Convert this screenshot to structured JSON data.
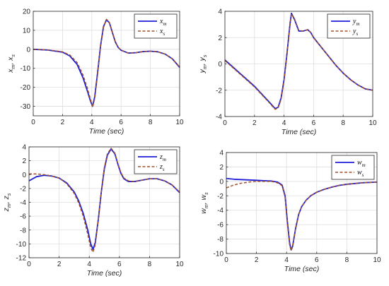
{
  "colors": {
    "master": "#1f1fd6",
    "slave": "#a0522d",
    "grid": "#dedede",
    "axis": "#262626"
  },
  "chart_data": [
    {
      "id": "x",
      "type": "line",
      "xlabel": "Time (sec)",
      "ylabel_parts": [
        {
          "main": "x",
          "sub": "m"
        },
        {
          "main": "x",
          "sub": "s"
        }
      ],
      "xlim": [
        0,
        10
      ],
      "ylim": [
        -35,
        20
      ],
      "xticks": [
        0,
        2,
        4,
        6,
        8,
        10
      ],
      "yticks": [
        -30,
        -20,
        -10,
        0,
        10,
        20
      ],
      "grid": true,
      "legend": "top-right",
      "series": [
        {
          "main": "x",
          "sub": "m",
          "style": "solid",
          "x": [
            0,
            1,
            2,
            2.5,
            3,
            3.4,
            3.7,
            3.9,
            4.05,
            4.2,
            4.4,
            4.6,
            4.8,
            5.0,
            5.2,
            5.4,
            5.6,
            5.8,
            6.0,
            6.5,
            7.0,
            7.5,
            8.0,
            8.5,
            9.0,
            9.5,
            10
          ],
          "y": [
            0,
            -0.4,
            -1.5,
            -3.5,
            -8,
            -15,
            -22,
            -27,
            -30,
            -25,
            -12,
            2,
            12,
            15.5,
            14,
            9,
            4,
            1,
            -0.5,
            -2,
            -1.8,
            -1.2,
            -1,
            -1.3,
            -2.5,
            -5,
            -9.5
          ]
        },
        {
          "main": "x",
          "sub": "s",
          "style": "dashed",
          "x": [
            0,
            1,
            2,
            2.5,
            3,
            3.4,
            3.7,
            3.9,
            4.05,
            4.2,
            4.4,
            4.6,
            4.8,
            5.0,
            5.2,
            5.4,
            5.6,
            5.8,
            6.0,
            6.5,
            7.0,
            7.5,
            8.0,
            8.5,
            9.0,
            9.5,
            10
          ],
          "y": [
            0,
            -0.3,
            -1.3,
            -3,
            -7,
            -13.5,
            -20.5,
            -26,
            -30.5,
            -26,
            -13,
            1.5,
            11.5,
            15.8,
            14.2,
            9.2,
            4.2,
            1.1,
            -0.4,
            -2,
            -1.8,
            -1.2,
            -1,
            -1.3,
            -2.5,
            -5,
            -9.3
          ]
        }
      ]
    },
    {
      "id": "y",
      "type": "line",
      "xlabel": "Time (sec)",
      "ylabel_parts": [
        {
          "main": "y",
          "sub": "m"
        },
        {
          "main": "y",
          "sub": "s"
        }
      ],
      "xlim": [
        0,
        10
      ],
      "ylim": [
        -4,
        4
      ],
      "xticks": [
        0,
        2,
        4,
        6,
        8,
        10
      ],
      "yticks": [
        -4,
        -2,
        0,
        2,
        4
      ],
      "grid": true,
      "legend": "top-right",
      "series": [
        {
          "main": "y",
          "sub": "m",
          "style": "solid",
          "x": [
            0,
            0.5,
            1,
            1.5,
            2,
            2.5,
            3,
            3.4,
            3.6,
            3.8,
            4.0,
            4.2,
            4.4,
            4.5,
            4.7,
            5.0,
            5.3,
            5.6,
            5.8,
            6.0,
            6.5,
            7.0,
            7.5,
            8.0,
            8.5,
            9.0,
            9.5,
            10
          ],
          "y": [
            0.3,
            -0.2,
            -0.7,
            -1.2,
            -1.7,
            -2.3,
            -2.9,
            -3.4,
            -3.3,
            -2.6,
            -1.2,
            0.8,
            3.0,
            3.85,
            3.4,
            2.5,
            2.5,
            2.6,
            2.4,
            2.0,
            1.3,
            0.6,
            -0.1,
            -0.7,
            -1.2,
            -1.6,
            -1.9,
            -2.0
          ]
        },
        {
          "main": "y",
          "sub": "s",
          "style": "dashed",
          "x": [
            0,
            0.5,
            1,
            1.5,
            2,
            2.5,
            3,
            3.4,
            3.6,
            3.8,
            4.0,
            4.2,
            4.4,
            4.5,
            4.7,
            5.0,
            5.3,
            5.6,
            5.8,
            6.0,
            6.5,
            7.0,
            7.5,
            8.0,
            8.5,
            9.0,
            9.5,
            10
          ],
          "y": [
            0.25,
            -0.25,
            -0.75,
            -1.25,
            -1.75,
            -2.35,
            -2.95,
            -3.45,
            -3.35,
            -2.7,
            -1.3,
            0.7,
            2.9,
            3.8,
            3.45,
            2.55,
            2.5,
            2.6,
            2.4,
            2.0,
            1.3,
            0.6,
            -0.1,
            -0.7,
            -1.2,
            -1.6,
            -1.9,
            -2.0
          ]
        }
      ]
    },
    {
      "id": "z",
      "type": "line",
      "xlabel": "Time (sec)",
      "ylabel_parts": [
        {
          "main": "z",
          "sub": "m"
        },
        {
          "main": "z",
          "sub": "s"
        }
      ],
      "xlim": [
        0,
        10
      ],
      "ylim": [
        -12,
        4
      ],
      "xticks": [
        0,
        2,
        4,
        6,
        8,
        10
      ],
      "yticks": [
        -12,
        -10,
        -8,
        -6,
        -4,
        -2,
        0,
        2,
        4
      ],
      "grid": true,
      "legend": "top-right",
      "series": [
        {
          "main": "z",
          "sub": "m",
          "style": "solid",
          "x": [
            0,
            0.5,
            1,
            1.5,
            2,
            2.5,
            3,
            3.3,
            3.6,
            3.9,
            4.1,
            4.25,
            4.4,
            4.6,
            4.8,
            5.0,
            5.2,
            5.45,
            5.7,
            5.9,
            6.1,
            6.3,
            6.6,
            7.0,
            7.5,
            8.0,
            8.5,
            9.0,
            9.5,
            10
          ],
          "y": [
            -0.9,
            -0.3,
            -0.1,
            -0.2,
            -0.5,
            -1.2,
            -2.5,
            -3.8,
            -5.6,
            -8,
            -10,
            -10.8,
            -9.8,
            -6.5,
            -2.5,
            0.8,
            2.8,
            3.7,
            3.0,
            1.5,
            0.2,
            -0.6,
            -1.0,
            -1.0,
            -0.8,
            -0.6,
            -0.6,
            -0.9,
            -1.5,
            -2.6
          ]
        },
        {
          "main": "z",
          "sub": "s",
          "style": "dashed",
          "x": [
            0,
            0.5,
            1,
            1.5,
            2,
            2.5,
            3,
            3.3,
            3.6,
            3.9,
            4.1,
            4.25,
            4.4,
            4.6,
            4.8,
            5.0,
            5.2,
            5.45,
            5.7,
            5.9,
            6.1,
            6.3,
            6.6,
            7.0,
            7.5,
            8.0,
            8.5,
            9.0,
            9.5,
            10
          ],
          "y": [
            0.1,
            0.1,
            0,
            -0.2,
            -0.5,
            -1.3,
            -2.7,
            -4.1,
            -6,
            -8.6,
            -10.6,
            -11.2,
            -10.1,
            -6.6,
            -2.4,
            1.0,
            3.0,
            3.8,
            3.1,
            1.6,
            0.3,
            -0.5,
            -0.9,
            -1.0,
            -0.8,
            -0.6,
            -0.6,
            -0.9,
            -1.5,
            -2.5
          ]
        }
      ]
    },
    {
      "id": "w",
      "type": "line",
      "xlabel": "Time (sec)",
      "ylabel_parts": [
        {
          "main": "w",
          "sub": "m"
        },
        {
          "main": "w",
          "sub": "s"
        }
      ],
      "xlim": [
        0,
        10
      ],
      "ylim": [
        -10,
        4
      ],
      "xticks": [
        0,
        2,
        4,
        6,
        8,
        10
      ],
      "yticks": [
        -10,
        -8,
        -6,
        -4,
        -2,
        0,
        2,
        4
      ],
      "grid": true,
      "legend": "top-right",
      "series": [
        {
          "main": "w",
          "sub": "m",
          "style": "solid",
          "x": [
            0,
            0.5,
            1,
            1.5,
            2,
            2.5,
            3,
            3.4,
            3.7,
            3.9,
            4.05,
            4.2,
            4.3,
            4.4,
            4.6,
            4.8,
            5.0,
            5.3,
            5.6,
            6.0,
            6.5,
            7.0,
            7.5,
            8.0,
            8.5,
            9.0,
            9.5,
            10
          ],
          "y": [
            0.4,
            0.3,
            0.25,
            0.2,
            0.15,
            0.1,
            0.05,
            -0.1,
            -0.5,
            -2,
            -5.5,
            -8.5,
            -9.5,
            -9.0,
            -6.5,
            -4.6,
            -3.5,
            -2.6,
            -2.0,
            -1.5,
            -1.1,
            -0.8,
            -0.55,
            -0.4,
            -0.3,
            -0.2,
            -0.15,
            -0.1
          ]
        },
        {
          "main": "w",
          "sub": "s",
          "style": "dashed",
          "x": [
            0,
            0.5,
            1,
            1.5,
            2,
            2.5,
            3,
            3.4,
            3.7,
            3.9,
            4.05,
            4.2,
            4.3,
            4.4,
            4.6,
            4.8,
            5.0,
            5.3,
            5.6,
            6.0,
            6.5,
            7.0,
            7.5,
            8.0,
            8.5,
            9.0,
            9.5,
            10
          ],
          "y": [
            -0.9,
            -0.5,
            -0.25,
            -0.1,
            0,
            0,
            0,
            -0.2,
            -0.6,
            -2.2,
            -5.8,
            -8.8,
            -9.6,
            -9.1,
            -6.6,
            -4.6,
            -3.5,
            -2.6,
            -2.0,
            -1.5,
            -1.1,
            -0.8,
            -0.55,
            -0.4,
            -0.3,
            -0.2,
            -0.15,
            -0.1
          ]
        }
      ]
    }
  ]
}
